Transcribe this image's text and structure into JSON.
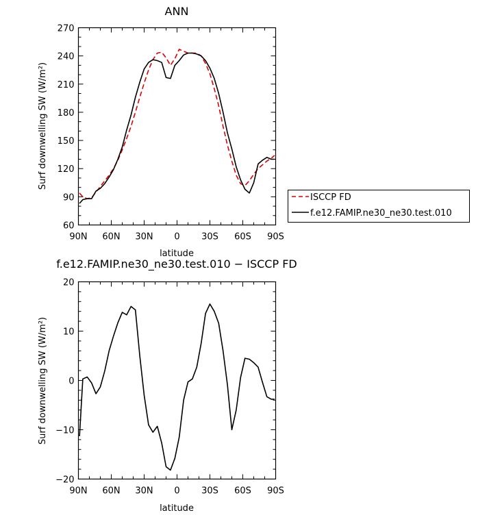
{
  "chart_data": [
    {
      "type": "line",
      "title": "ANN",
      "xlabel": "latitude",
      "ylabel": "Surf downwelling SW (W/m²)",
      "xlim": [
        90,
        -90
      ],
      "ylim": [
        60,
        270
      ],
      "xticks": [
        90,
        60,
        30,
        0,
        -30,
        -60,
        -90
      ],
      "xtick_labels": [
        "90N",
        "60N",
        "30N",
        "0",
        "30S",
        "60S",
        "90S"
      ],
      "yticks": [
        60,
        90,
        120,
        150,
        180,
        210,
        240,
        270
      ],
      "ytick_labels": [
        "60",
        "90",
        "120",
        "150",
        "180",
        "210",
        "240",
        "270"
      ],
      "legend_position": "right",
      "series": [
        {
          "name": "ISCCP FD",
          "color": "#dd0000",
          "dash": "dashed",
          "x": [
            89,
            86,
            82,
            78,
            74,
            70,
            66,
            62,
            58,
            54,
            50,
            46,
            42,
            38,
            34,
            30,
            26,
            22,
            18,
            14,
            10,
            6,
            2,
            -2,
            -6,
            -10,
            -14,
            -18,
            -22,
            -26,
            -30,
            -34,
            -38,
            -42,
            -46,
            -50,
            -54,
            -58,
            -62,
            -66,
            -70,
            -74,
            -78,
            -82,
            -86,
            -89
          ],
          "y": [
            94,
            90,
            88,
            89,
            95,
            101,
            107,
            113,
            120,
            129,
            140,
            152,
            165,
            180,
            196,
            211,
            225,
            236,
            243,
            244,
            238,
            230,
            237,
            247,
            245,
            243,
            243,
            243,
            240,
            232,
            221,
            205,
            187,
            165,
            145,
            128,
            113,
            104,
            102,
            107,
            114,
            120,
            124,
            128,
            131,
            134
          ]
        },
        {
          "name": "f.e12.FAMIP.ne30_ne30.test.010",
          "color": "#000000",
          "dash": "solid",
          "x": [
            89,
            86,
            82,
            78,
            74,
            70,
            66,
            62,
            58,
            54,
            50,
            46,
            42,
            38,
            34,
            30,
            26,
            22,
            18,
            14,
            10,
            6,
            2,
            -2,
            -6,
            -10,
            -14,
            -18,
            -22,
            -26,
            -30,
            -34,
            -38,
            -42,
            -46,
            -50,
            -54,
            -58,
            -62,
            -66,
            -70,
            -74,
            -78,
            -82,
            -86,
            -89
          ],
          "y": [
            83,
            87,
            88,
            88,
            96,
            99,
            104,
            111,
            119,
            130,
            143,
            161,
            177,
            196,
            212,
            226,
            233,
            236,
            235,
            233,
            217,
            216,
            230,
            235,
            241,
            243,
            243,
            242,
            240,
            235,
            227,
            216,
            200,
            180,
            158,
            141,
            122,
            108,
            98,
            94,
            105,
            125,
            129,
            132,
            130,
            130
          ]
        }
      ]
    },
    {
      "type": "line",
      "title": "f.e12.FAMIP.ne30_ne30.test.010 − ISCCP FD",
      "xlabel": "latitude",
      "ylabel": "Surf downwelling SW (W/m²)",
      "xlim": [
        90,
        -90
      ],
      "ylim": [
        -20,
        20
      ],
      "xticks": [
        90,
        60,
        30,
        0,
        -30,
        -60,
        -90
      ],
      "xtick_labels": [
        "90N",
        "60N",
        "30N",
        "0",
        "30S",
        "60S",
        "90S"
      ],
      "yticks": [
        -20,
        -10,
        0,
        10,
        20
      ],
      "ytick_labels": [
        "−20",
        "−10",
        "0",
        "10",
        "20"
      ],
      "series": [
        {
          "color": "#000000",
          "dash": "solid",
          "x": [
            89,
            86,
            82,
            78,
            74,
            70,
            66,
            62,
            58,
            54,
            50,
            46,
            42,
            38,
            34,
            30,
            26,
            22,
            18,
            14,
            10,
            6,
            2,
            -2,
            -6,
            -10,
            -14,
            -18,
            -22,
            -26,
            -30,
            -34,
            -38,
            -42,
            -46,
            -50,
            -54,
            -58,
            -62,
            -66,
            -70,
            -74,
            -78,
            -82,
            -86,
            -89
          ],
          "y": [
            -11.3,
            0.3,
            0.7,
            -0.5,
            -2.7,
            -1.3,
            1.9,
            6.0,
            9.0,
            11.7,
            13.8,
            13.3,
            15.0,
            14.3,
            5.0,
            -3.0,
            -9.0,
            -10.5,
            -9.3,
            -12.7,
            -17.5,
            -18.2,
            -15.8,
            -11.5,
            -4.0,
            -0.3,
            0.3,
            2.7,
            7.5,
            13.6,
            15.5,
            14.0,
            11.6,
            6.0,
            -0.9,
            -10.0,
            -6.0,
            0.6,
            4.5,
            4.3,
            3.6,
            2.7,
            -0.4,
            -3.3,
            -3.8,
            -3.8
          ]
        }
      ]
    }
  ]
}
